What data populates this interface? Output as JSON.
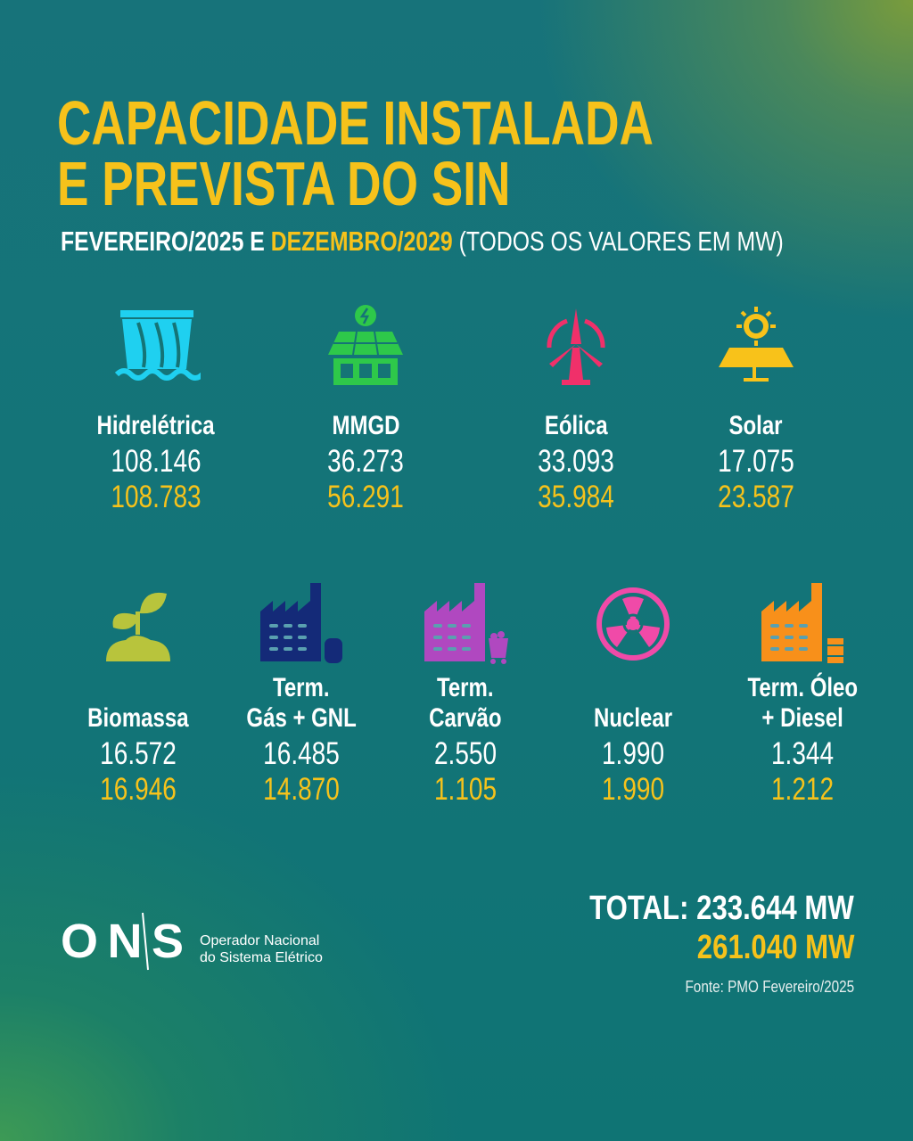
{
  "title_line1": "CAPACIDADE INSTALADA",
  "title_line2": "E PREVISTA DO SIN",
  "subtitle": {
    "part1": "FEVEREIRO/2025 E ",
    "part2": "DEZEMBRO/2029",
    "part3": " (TODOS OS VALORES EM MW)"
  },
  "colors": {
    "accent": "#f6c21b",
    "text": "#ffffff"
  },
  "items": [
    {
      "label": [
        "Hidrelétrica"
      ],
      "fev2025": "108.146",
      "dez2029": "108.783",
      "icon": "hydro-dam-icon",
      "color": "#1fd0f0"
    },
    {
      "label": [
        "MMGD"
      ],
      "fev2025": "36.273",
      "dez2029": "56.291",
      "icon": "rooftop-solar-house-icon",
      "color": "#2ec84a"
    },
    {
      "label": [
        "Eólica"
      ],
      "fev2025": "33.093",
      "dez2029": "35.984",
      "icon": "wind-turbine-icon",
      "color": "#f0306a"
    },
    {
      "label": [
        "Solar"
      ],
      "fev2025": "17.075",
      "dez2029": "23.587",
      "icon": "solar-panel-sun-icon",
      "color": "#f8c21a"
    },
    {
      "label": [
        "Biomassa"
      ],
      "fev2025": "16.572",
      "dez2029": "16.946",
      "icon": "sprout-icon",
      "color": "#b8c43c"
    },
    {
      "label": [
        "Term.",
        "Gás + GNL"
      ],
      "fev2025": "16.485",
      "dez2029": "14.870",
      "icon": "factory-gas-icon",
      "color": "#142a78"
    },
    {
      "label": [
        "Term.",
        "Carvão"
      ],
      "fev2025": "2.550",
      "dez2029": "1.105",
      "icon": "factory-coal-icon",
      "color": "#b048c0"
    },
    {
      "label": [
        "Nuclear"
      ],
      "fev2025": "1.990",
      "dez2029": "1.990",
      "icon": "radiation-icon",
      "color": "#f04aa8"
    },
    {
      "label": [
        "Term. Óleo",
        "+ Diesel"
      ],
      "fev2025": "1.344",
      "dez2029": "1.212",
      "icon": "factory-oil-barrel-icon",
      "color": "#f8901a"
    }
  ],
  "total": {
    "fev2025": "TOTAL: 233.644 MW",
    "dez2029": "261.040 MW"
  },
  "logo": {
    "mark": "ONS",
    "line1": "Operador Nacional",
    "line2": "do Sistema Elétrico"
  },
  "source": "Fonte: PMO Fevereiro/2025"
}
